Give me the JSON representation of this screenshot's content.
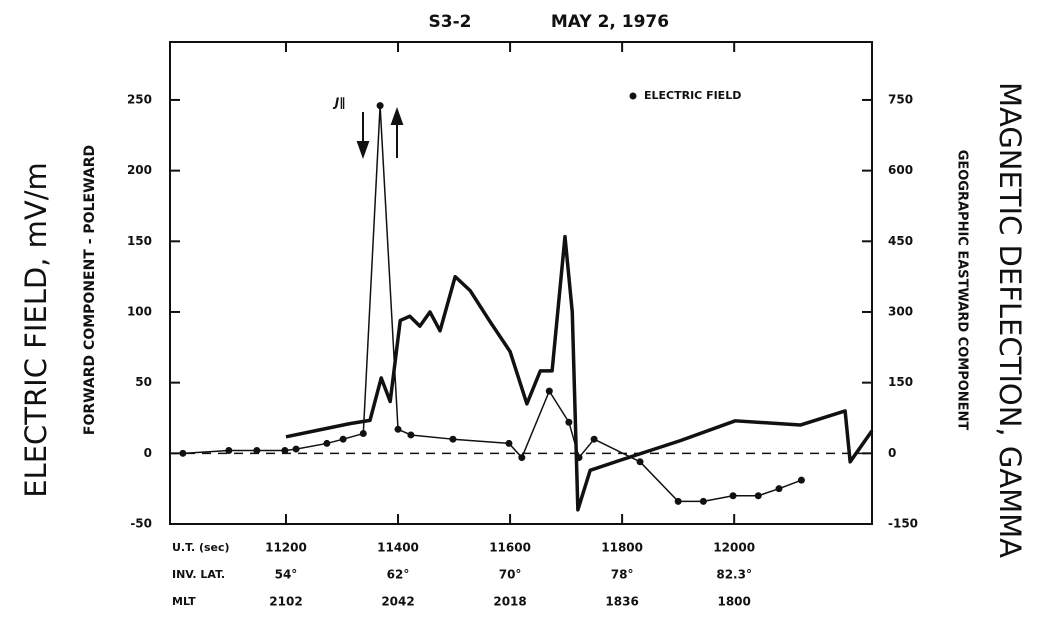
{
  "chart_data": {
    "type": "line",
    "title": "S3-2",
    "subtitle": "MAY 2, 1976",
    "y_label": "ELECTRIC FIELD, mV/m",
    "y_sublabel": "FORWARD COMPONENT - POLEWARD",
    "y2_label": "MAGNETIC DEFLECTION, GAMMA",
    "y2_sublabel": "GEOGRAPHIC EASTWARD COMPONENT",
    "annotation": "J∥",
    "x_row_labels": [
      "U.T. (sec)",
      "INV. LAT.",
      "MLT"
    ],
    "xlim": [
      10993,
      12246
    ],
    "xticks": [
      11200,
      11400,
      11600,
      11800,
      12000
    ],
    "inv_lat": [
      "54°",
      "62°",
      "70°",
      "78°",
      "82.3°"
    ],
    "mlt": [
      "2102",
      "2042",
      "2018",
      "1836",
      "1800"
    ],
    "ylim": [
      -50,
      291
    ],
    "yticks": [
      -50,
      0,
      50,
      100,
      150,
      200,
      250
    ],
    "y2lim": [
      -150,
      873
    ],
    "y2ticks": [
      -150,
      0,
      150,
      300,
      450,
      600,
      750
    ],
    "legend": "top-right",
    "series": [
      {
        "name": "ELECTRIC FIELD",
        "color": "#111111",
        "markers": true,
        "x": [
          11016,
          11098,
          11148,
          11198,
          11218,
          11273,
          11302,
          11338,
          11368,
          11400,
          11423,
          11498,
          11598,
          11621,
          11670,
          11705,
          11723,
          11750,
          11832,
          11900,
          11945,
          11998,
          12043,
          12080,
          12120
        ],
        "values": [
          0,
          2,
          2,
          2,
          3,
          7,
          10,
          14,
          246,
          17,
          13,
          10,
          7,
          -3,
          44,
          22,
          -3,
          10,
          -6,
          -34,
          -34,
          -30,
          -30,
          -25,
          -19
        ]
      },
      {
        "color": "#111111",
        "axis": "y2",
        "markers": false,
        "x": [
          11200,
          11261,
          11314,
          11350,
          11370,
          11386,
          11404,
          11421,
          11439,
          11457,
          11475,
          11502,
          11529,
          11564,
          11600,
          11630,
          11654,
          11675,
          11698,
          11711,
          11721,
          11743,
          11796,
          11904,
          12002,
          12118,
          12198,
          12207,
          12246
        ],
        "values": [
          35,
          50,
          63,
          70,
          160,
          110,
          282,
          291,
          270,
          300,
          260,
          375,
          345,
          280,
          216,
          105,
          175,
          175,
          460,
          300,
          -120,
          -36,
          -15,
          27,
          69,
          60,
          90,
          -18,
          48
        ]
      }
    ]
  }
}
